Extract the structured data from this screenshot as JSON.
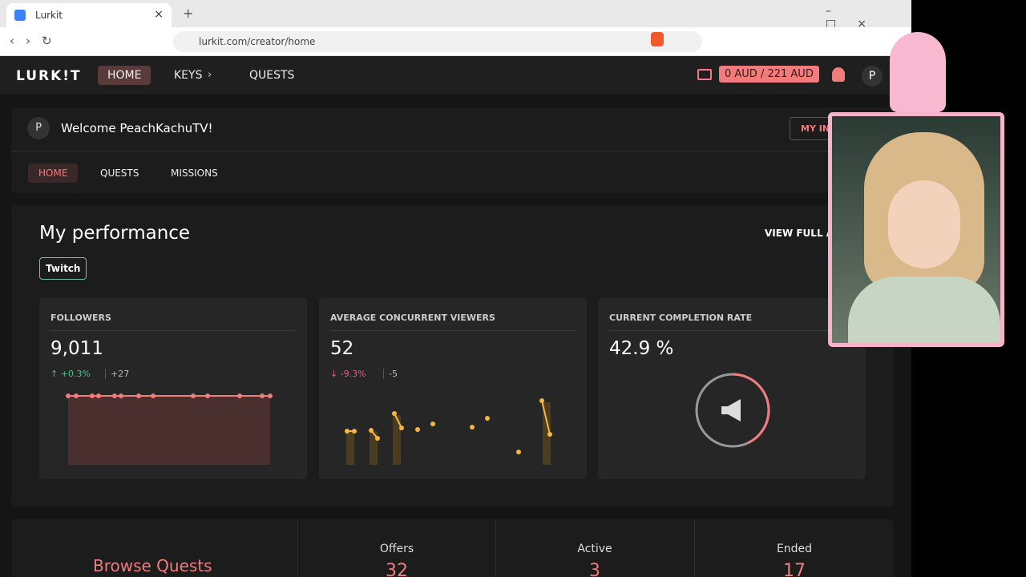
{
  "browser": {
    "tab_title": "Lurkit",
    "url": "lurkit.com/creator/home"
  },
  "header": {
    "logo": "LURK!T",
    "nav": [
      "HOME",
      "KEYS",
      "QUESTS"
    ],
    "balance": "0 AUD / 221 AUD",
    "avatar": "P"
  },
  "welcome": {
    "avatar": "P",
    "text": "Welcome PeachKachuTV!",
    "button": "MY IN"
  },
  "subnav": [
    "HOME",
    "QUESTS",
    "MISSIONS"
  ],
  "performance": {
    "title": "My performance",
    "view_link": "VIEW FULL AN",
    "platform": "Twitch",
    "cards": [
      {
        "label": "FOLLOWERS",
        "value": "9,011",
        "change": "+0.3%",
        "delta": "+27"
      },
      {
        "label": "AVERAGE CONCURRENT VIEWERS",
        "value": "52",
        "change": "-9.3%",
        "delta": "-5"
      },
      {
        "label": "CURRENT COMPLETION RATE",
        "value": {
          "value": 42.9,
          "label": "42.9 %"
        }
      }
    ]
  },
  "quests": {
    "title": "Browse Quests",
    "stats": [
      {
        "label": "Offers",
        "value": "32"
      },
      {
        "label": "Active",
        "value": "3"
      },
      {
        "label": "Ended",
        "value": "17"
      }
    ]
  }
}
